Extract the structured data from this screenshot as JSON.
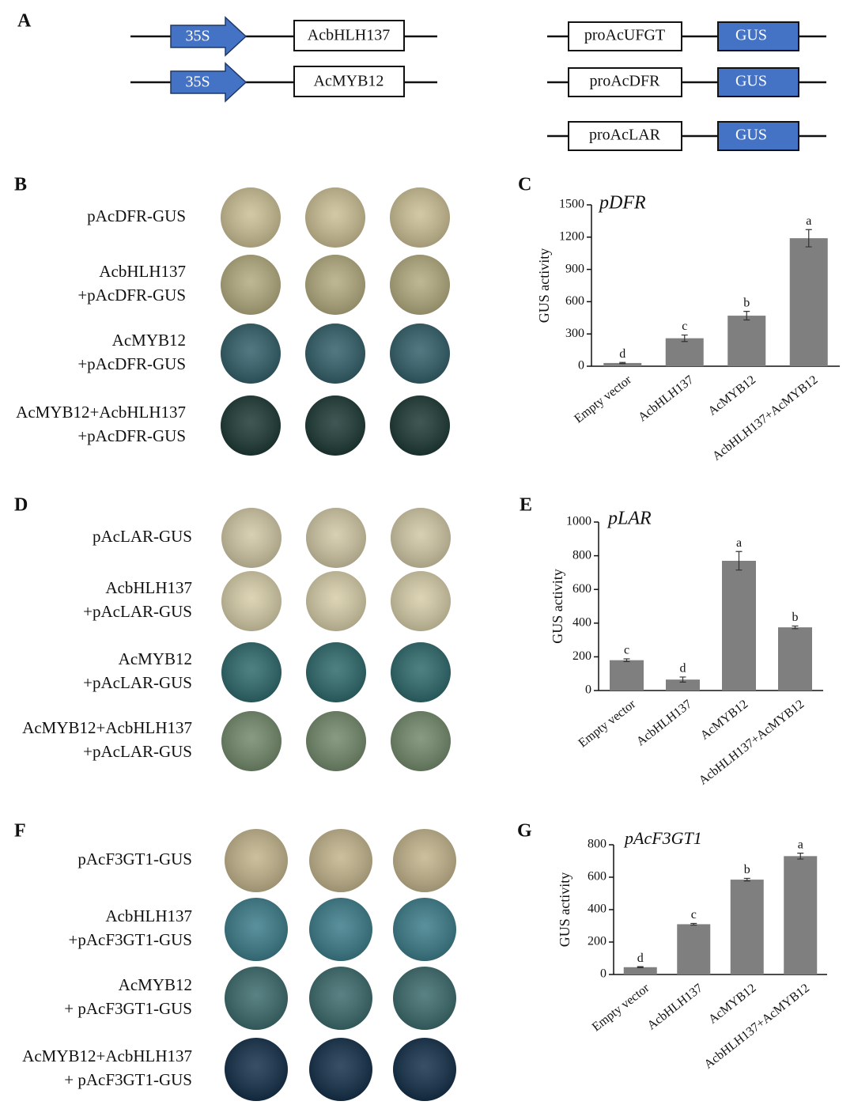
{
  "panel_labels": [
    "A",
    "B",
    "C",
    "D",
    "E",
    "F",
    "G"
  ],
  "constructs": {
    "effectors": [
      {
        "promoter": "35S",
        "gene": "AcbHLH137"
      },
      {
        "promoter": "35S",
        "gene": "AcMYB12"
      }
    ],
    "reporters": [
      {
        "promoter": "proAcUFGT",
        "reporter": "GUS"
      },
      {
        "promoter": "proAcDFR",
        "reporter": "GUS"
      },
      {
        "promoter": "proAcLAR",
        "reporter": "GUS"
      }
    ]
  },
  "assays": [
    {
      "rows": [
        [
          "pAcDFR-GUS"
        ],
        [
          "AcbHLH137",
          "+pAcDFR-GUS"
        ],
        [
          "AcMYB12",
          "+pAcDFR-GUS"
        ],
        [
          "AcMYB12+AcbHLH137",
          "+pAcDFR-GUS"
        ]
      ]
    },
    {
      "rows": [
        [
          "pAcLAR-GUS"
        ],
        [
          "AcbHLH137",
          "+pAcLAR-GUS"
        ],
        [
          "AcMYB12",
          "+pAcLAR-GUS"
        ],
        [
          "AcMYB12+AcbHLH137",
          "+pAcLAR-GUS"
        ]
      ]
    },
    {
      "rows": [
        [
          "pAcF3GT1-GUS"
        ],
        [
          "AcbHLH137",
          "+pAcF3GT1-GUS"
        ],
        [
          "AcMYB12",
          "+ pAcF3GT1-GUS"
        ],
        [
          "AcMYB12+AcbHLH137",
          "+ pAcF3GT1-GUS"
        ]
      ]
    }
  ],
  "chart_data": [
    {
      "type": "bar",
      "title": "pDFR",
      "y_label": "GUS activity",
      "categories": [
        "Empty vector",
        "AcbHLH137",
        "AcMYB12",
        "AcbHLH137+AcMYB12"
      ],
      "values": [
        30,
        260,
        470,
        1190
      ],
      "errors": [
        5,
        30,
        40,
        80
      ],
      "annotations": [
        "d",
        "c",
        "b",
        "a"
      ],
      "color": "#7f7f7f",
      "ylim": [
        0,
        1500
      ],
      "yticks": [
        0,
        300,
        600,
        900,
        1200,
        1500
      ]
    },
    {
      "type": "bar",
      "title": "pLAR",
      "y_label": "GUS activity",
      "categories": [
        "Empty vector",
        "AcbHLH137",
        "AcMYB12",
        "AcbHLH137+AcMYB12"
      ],
      "values": [
        180,
        65,
        770,
        375
      ],
      "errors": [
        8,
        15,
        55,
        8
      ],
      "annotations": [
        "c",
        "d",
        "a",
        "b"
      ],
      "color": "#7f7f7f",
      "ylim": [
        0,
        1000
      ],
      "yticks": [
        0,
        200,
        400,
        600,
        800,
        1000
      ]
    },
    {
      "type": "bar",
      "title": "pAcF3GT1",
      "y_label": "GUS activity",
      "categories": [
        "Empty vector",
        "AcbHLH137",
        "AcMYB12",
        "AcbHLH137+AcMYB12"
      ],
      "values": [
        45,
        310,
        585,
        730
      ],
      "errors": [
        3,
        5,
        8,
        18
      ],
      "annotations": [
        "d",
        "c",
        "b",
        "a"
      ],
      "color": "#7f7f7f",
      "ylim": [
        0,
        800
      ],
      "yticks": [
        0,
        200,
        400,
        600,
        800
      ]
    }
  ]
}
